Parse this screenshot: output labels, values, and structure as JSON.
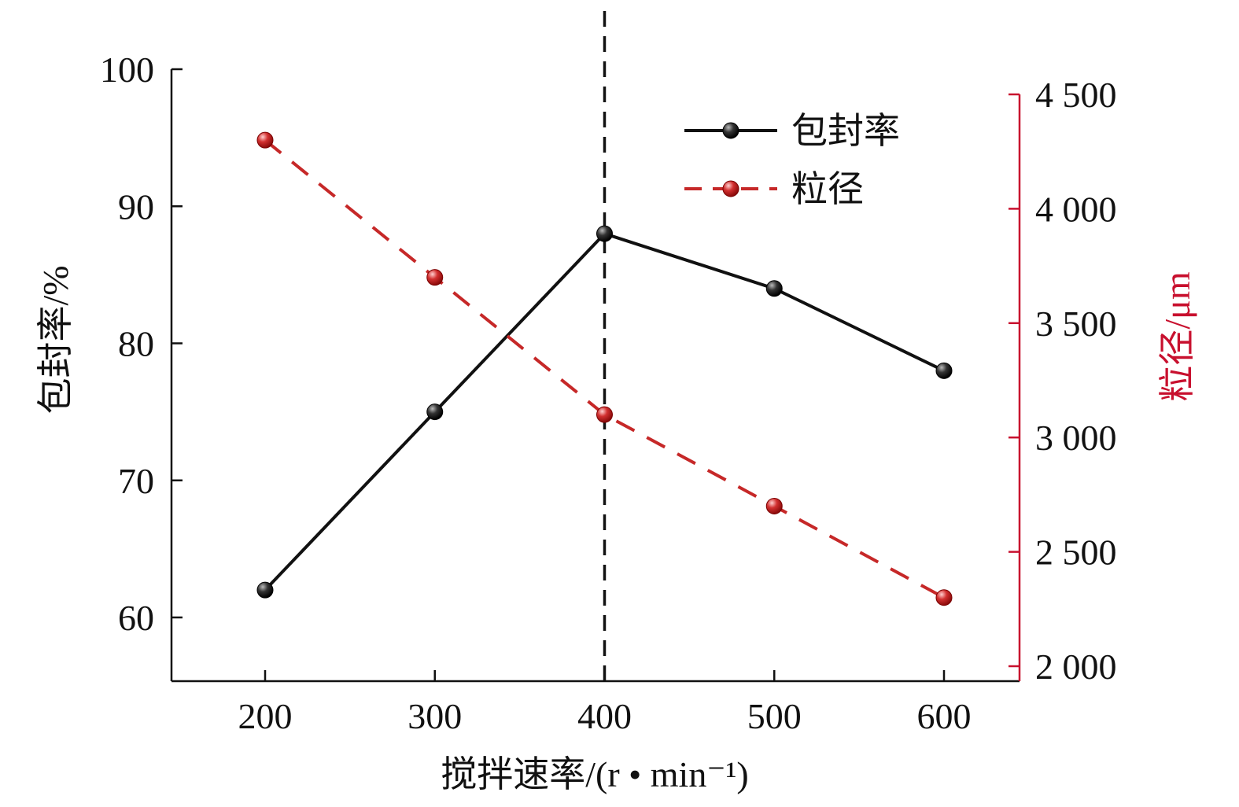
{
  "chart_data": {
    "type": "line",
    "x": [
      200,
      300,
      400,
      500,
      600
    ],
    "xlabel": "搅拌速率/(r • min⁻¹)",
    "xticks": [
      "200",
      "300",
      "400",
      "500",
      "600"
    ],
    "y_left": {
      "label": "包封率/%",
      "range": [
        55.3,
        100
      ],
      "ticks": [
        "60",
        "70",
        "80",
        "90",
        "100"
      ],
      "tick_values": [
        60,
        70,
        80,
        90,
        100
      ]
    },
    "y_right": {
      "label": "粒径/μm",
      "range": [
        1930,
        4500
      ],
      "ticks": [
        "2 000",
        "2 500",
        "3 000",
        "3 500",
        "4 000",
        "4 500"
      ],
      "tick_values": [
        2000,
        2500,
        3000,
        3500,
        4000,
        4500
      ],
      "color": "#c8102e"
    },
    "series": [
      {
        "name": "包封率",
        "axis": "left",
        "values": [
          62,
          75,
          88,
          84,
          78
        ],
        "color": "#111111",
        "line_style": "solid"
      },
      {
        "name": "粒径",
        "axis": "right",
        "values": [
          4300,
          3700,
          3100,
          2700,
          2300
        ],
        "color": "#c62828",
        "line_style": "dashed"
      }
    ],
    "reference_line": {
      "x": 400,
      "style": "dashed",
      "color": "#111111"
    },
    "legend_position": "top-right",
    "grid": false
  }
}
